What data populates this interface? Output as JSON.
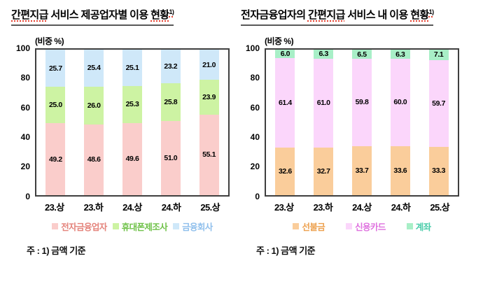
{
  "chart_data": [
    {
      "type": "bar",
      "stacked": true,
      "title": "간편지급 서비스 제공업자별 이용 현황1)",
      "title_parts": [
        {
          "text": "간편지급",
          "red_underline": true
        },
        {
          "text": " 서비스 제공업자별 이용 ",
          "red_underline": false
        },
        {
          "text": "현황",
          "red_underline": true
        }
      ],
      "title_superscript": "1)",
      "unit_label": "(비중 %)",
      "categories": [
        "23.상",
        "23.하",
        "24.상",
        "24.하",
        "25.상"
      ],
      "series": [
        {
          "name": "전자금융업자",
          "fill": "#FACDCB",
          "legend_text_color": "#E4837B",
          "values": [
            49.2,
            48.6,
            49.6,
            51.0,
            55.1
          ]
        },
        {
          "name": "휴대폰제조사",
          "fill": "#CDF3A3",
          "legend_text_color": "#70C24A",
          "values": [
            25.0,
            26.0,
            25.3,
            25.8,
            23.9
          ]
        },
        {
          "name": "금융회사",
          "fill": "#CFE8F9",
          "legend_text_color": "#8FBFEC",
          "values": [
            25.7,
            25.4,
            25.1,
            23.2,
            21.0
          ]
        }
      ],
      "ylim": [
        0,
        100
      ],
      "y_ticks": [
        0,
        20,
        40,
        60,
        80,
        100
      ],
      "grid": false,
      "legend_position": "bottom",
      "value_labels": true,
      "footnote": "주 : 1) 금액 기준"
    },
    {
      "type": "bar",
      "stacked": true,
      "title": "전자금융업자의 간편지급 서비스 내 이용 현황1)",
      "title_parts": [
        {
          "text": "전자금융업자의 ",
          "red_underline": false
        },
        {
          "text": "간편지급",
          "red_underline": true
        },
        {
          "text": " 서비스 내 이용 ",
          "red_underline": false
        },
        {
          "text": "현황",
          "red_underline": true
        }
      ],
      "title_superscript": "1)",
      "unit_label": "(비중 %)",
      "categories": [
        "23.상",
        "23.하",
        "24.상",
        "24.하",
        "25.상"
      ],
      "series": [
        {
          "name": "선불금",
          "fill": "#FACD9B",
          "legend_text_color": "#EDA14F",
          "values": [
            32.6,
            32.7,
            33.7,
            33.6,
            33.3
          ]
        },
        {
          "name": "신용카드",
          "fill": "#FBD6FB",
          "legend_text_color": "#DF71DF",
          "values": [
            61.4,
            61.0,
            59.8,
            60.0,
            59.7
          ]
        },
        {
          "name": "계좌",
          "fill": "#A8EFC7",
          "legend_text_color": "#49CCA9",
          "values": [
            6.0,
            6.3,
            6.5,
            6.3,
            7.1
          ]
        }
      ],
      "ylim": [
        0,
        100
      ],
      "y_ticks": [
        0,
        20,
        40,
        60,
        80,
        100
      ],
      "grid": false,
      "legend_position": "bottom",
      "value_labels": true,
      "footnote": "주 : 1) 금액 기준"
    }
  ]
}
